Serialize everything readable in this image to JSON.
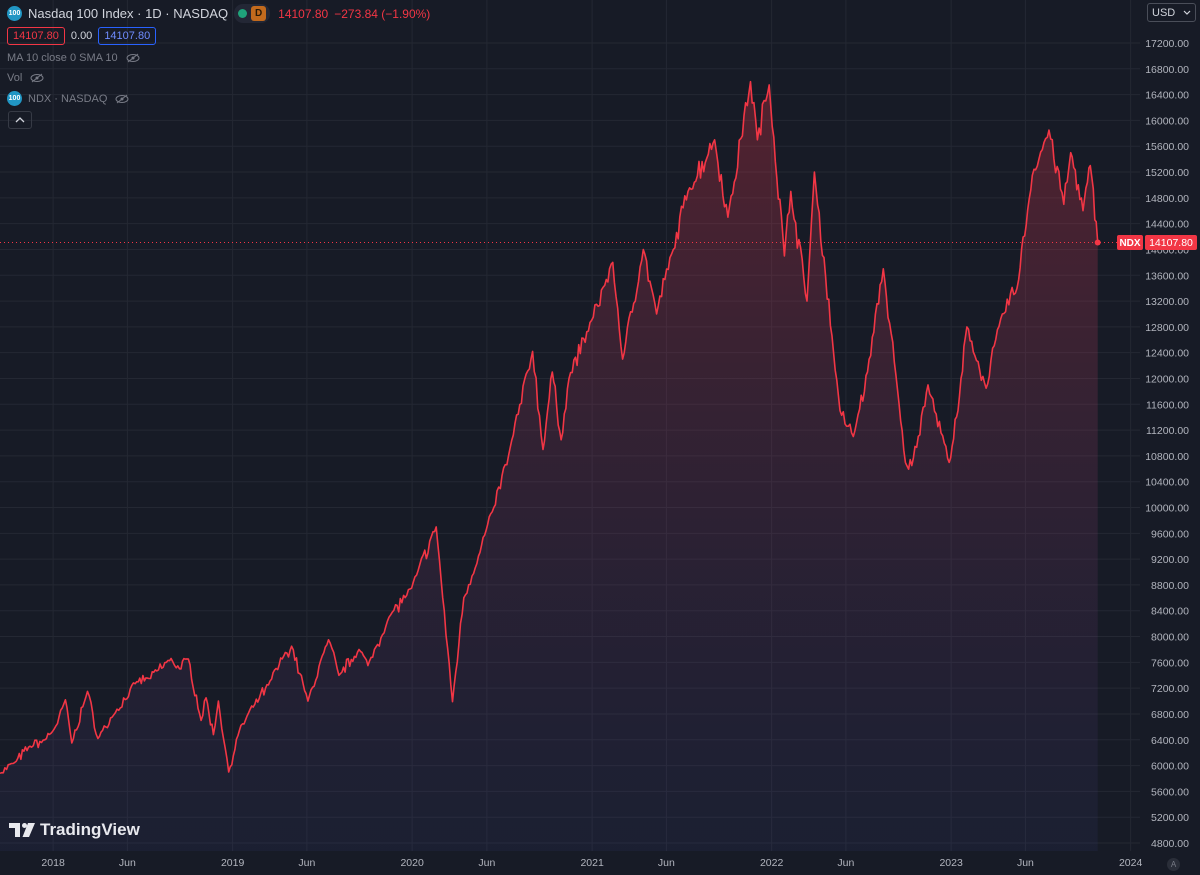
{
  "header": {
    "symbol_badge": "100",
    "title": "Nasdaq 100 Index · 1D · NASDAQ",
    "interval_badge": "D",
    "last": "14107.80",
    "change": "−273.84 (−1.90%)",
    "bid": "14107.80",
    "spread": "0.00",
    "ask": "14107.80"
  },
  "indicators": {
    "ma_label": "MA 10 close 0 SMA 10",
    "vol_label": "Vol",
    "compare_badge": "100",
    "compare_label": "NDX · NASDAQ"
  },
  "currency": "USD",
  "price_tag": {
    "symbol": "NDX",
    "value": "14107.80"
  },
  "brand": "TradingView",
  "scale_mode": "A",
  "colors": {
    "line": "#f23645",
    "background": "#171b26",
    "grid": "#242833",
    "accent_blue": "#2962ff"
  },
  "chart_data": {
    "type": "area",
    "ylim": [
      4800,
      17400
    ],
    "y_ticks": [
      4800,
      5200,
      5600,
      6000,
      6400,
      6800,
      7200,
      7600,
      8000,
      8400,
      8800,
      9200,
      9600,
      10000,
      10400,
      10800,
      11200,
      11600,
      12000,
      12400,
      12800,
      13200,
      13600,
      14000,
      14400,
      14800,
      15200,
      15600,
      16000,
      16400,
      16800,
      17200
    ],
    "y_tick_labels": [
      "4800.00",
      "5200.00",
      "5600.00",
      "6000.00",
      "6400.00",
      "6800.00",
      "7200.00",
      "7600.00",
      "8000.00",
      "8400.00",
      "8800.00",
      "9200.00",
      "9600.00",
      "10000.00",
      "10400.00",
      "10800.00",
      "11200.00",
      "11600.00",
      "12000.00",
      "12400.00",
      "12800.00",
      "13200.00",
      "13600.00",
      "14000.00",
      "14400.00",
      "14800.00",
      "15200.00",
      "15600.00",
      "16000.00",
      "16400.00",
      "16800.00",
      "17200.00"
    ],
    "x_range": [
      "2017-09-15",
      "2024-01-20"
    ],
    "x_ticks": [
      {
        "date": "2018-01-01",
        "label": "2018"
      },
      {
        "date": "2018-06-01",
        "label": "Jun"
      },
      {
        "date": "2019-01-01",
        "label": "2019"
      },
      {
        "date": "2019-06-01",
        "label": "Jun"
      },
      {
        "date": "2020-01-01",
        "label": "2020"
      },
      {
        "date": "2020-06-01",
        "label": "Jun"
      },
      {
        "date": "2021-01-01",
        "label": "2021"
      },
      {
        "date": "2021-06-01",
        "label": "Jun"
      },
      {
        "date": "2022-01-01",
        "label": "2022"
      },
      {
        "date": "2022-06-01",
        "label": "Jun"
      },
      {
        "date": "2023-01-01",
        "label": "2023"
      },
      {
        "date": "2023-06-01",
        "label": "Jun"
      },
      {
        "date": "2024-01-01",
        "label": "2024"
      }
    ],
    "grid": true,
    "series": [
      {
        "points": [
          [
            "2017-09-15",
            5880
          ],
          [
            "2017-10-15",
            6050
          ],
          [
            "2017-11-15",
            6300
          ],
          [
            "2017-12-15",
            6400
          ],
          [
            "2018-01-10",
            6650
          ],
          [
            "2018-01-26",
            7020
          ],
          [
            "2018-02-08",
            6350
          ],
          [
            "2018-03-12",
            7150
          ],
          [
            "2018-04-02",
            6420
          ],
          [
            "2018-05-01",
            6750
          ],
          [
            "2018-06-20",
            7300
          ],
          [
            "2018-07-15",
            7350
          ],
          [
            "2018-08-29",
            7660
          ],
          [
            "2018-09-15",
            7500
          ],
          [
            "2018-10-03",
            7650
          ],
          [
            "2018-10-29",
            6700
          ],
          [
            "2018-11-08",
            7050
          ],
          [
            "2018-11-23",
            6480
          ],
          [
            "2018-12-03",
            7000
          ],
          [
            "2018-12-24",
            5900
          ],
          [
            "2019-01-15",
            6550
          ],
          [
            "2019-02-15",
            6950
          ],
          [
            "2019-03-15",
            7250
          ],
          [
            "2019-04-15",
            7700
          ],
          [
            "2019-05-01",
            7850
          ],
          [
            "2019-06-03",
            7000
          ],
          [
            "2019-07-15",
            7950
          ],
          [
            "2019-08-05",
            7400
          ],
          [
            "2019-09-15",
            7800
          ],
          [
            "2019-10-03",
            7550
          ],
          [
            "2019-11-15",
            8300
          ],
          [
            "2019-12-31",
            8750
          ],
          [
            "2020-02-19",
            9700
          ],
          [
            "2020-03-23",
            6990
          ],
          [
            "2020-04-15",
            8600
          ],
          [
            "2020-05-15",
            9250
          ],
          [
            "2020-06-15",
            10000
          ],
          [
            "2020-07-15",
            10800
          ],
          [
            "2020-09-02",
            12420
          ],
          [
            "2020-09-23",
            10900
          ],
          [
            "2020-10-12",
            12100
          ],
          [
            "2020-10-30",
            11050
          ],
          [
            "2020-11-15",
            12000
          ],
          [
            "2020-12-31",
            12900
          ],
          [
            "2021-02-12",
            13800
          ],
          [
            "2021-03-04",
            12300
          ],
          [
            "2021-04-15",
            14000
          ],
          [
            "2021-05-12",
            13000
          ],
          [
            "2021-06-15",
            14000
          ],
          [
            "2021-07-15",
            14900
          ],
          [
            "2021-09-07",
            15700
          ],
          [
            "2021-10-04",
            14500
          ],
          [
            "2021-11-19",
            16600
          ],
          [
            "2021-12-03",
            15700
          ],
          [
            "2021-12-27",
            16550
          ],
          [
            "2022-01-27",
            13900
          ],
          [
            "2022-02-09",
            14900
          ],
          [
            "2022-03-14",
            13200
          ],
          [
            "2022-03-29",
            15200
          ],
          [
            "2022-05-20",
            11500
          ],
          [
            "2022-06-16",
            11100
          ],
          [
            "2022-07-15",
            12100
          ],
          [
            "2022-08-16",
            13700
          ],
          [
            "2022-09-30",
            10700
          ],
          [
            "2022-10-13",
            10650
          ],
          [
            "2022-11-15",
            11900
          ],
          [
            "2022-12-28",
            10700
          ],
          [
            "2023-01-15",
            11500
          ],
          [
            "2023-02-02",
            12800
          ],
          [
            "2023-03-13",
            11850
          ],
          [
            "2023-04-15",
            13000
          ],
          [
            "2023-05-15",
            13400
          ],
          [
            "2023-06-15",
            15150
          ],
          [
            "2023-07-19",
            15850
          ],
          [
            "2023-08-18",
            14700
          ],
          [
            "2023-09-01",
            15500
          ],
          [
            "2023-09-26",
            14600
          ],
          [
            "2023-10-11",
            15300
          ],
          [
            "2023-10-26",
            14107.8
          ]
        ]
      }
    ]
  }
}
